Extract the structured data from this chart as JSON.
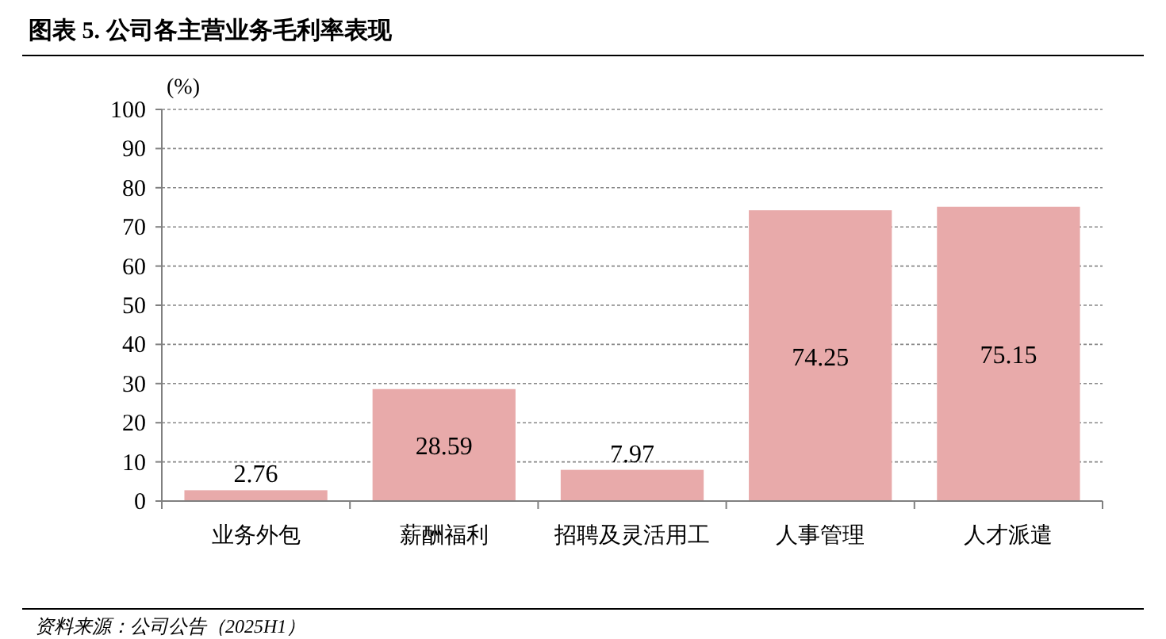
{
  "chart_data": {
    "type": "bar",
    "title": "图表 5. 公司各主营业务毛利率表现",
    "ylabel": "(%)",
    "categories": [
      "业务外包",
      "薪酬福利",
      "招聘及灵活用工",
      "人事管理",
      "人才派遣"
    ],
    "values": [
      2.76,
      28.59,
      7.97,
      74.25,
      75.15
    ],
    "color": "#e8aaaa",
    "ylim": [
      0,
      100
    ],
    "yticks": [
      0,
      10,
      20,
      30,
      40,
      50,
      60,
      70,
      80,
      90,
      100
    ],
    "grid": "y",
    "data_labels": true,
    "annotations": [
      "资料来源：公司公告（2025H1）"
    ]
  }
}
